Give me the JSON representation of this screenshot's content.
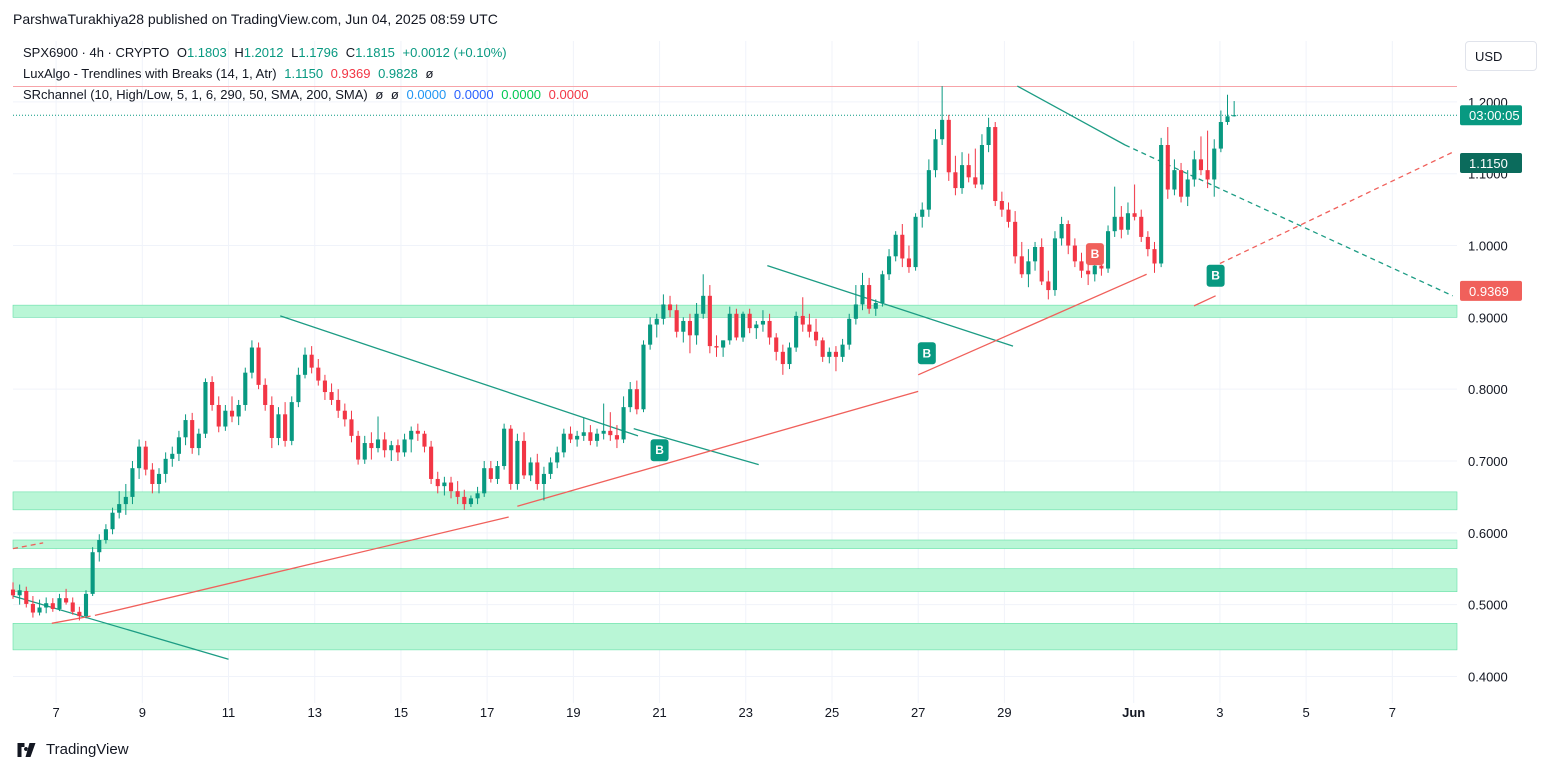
{
  "publisher": "ParshwaTurakhiya28 published on TradingView.com, Jun 04, 2025 08:59 UTC",
  "legend": {
    "symbol": "SPX6900 · 4h · CRYPTO",
    "open_label": "O",
    "open": "1.1803",
    "high_label": "H",
    "high": "1.2012",
    "low_label": "L",
    "low": "1.1796",
    "close_label": "C",
    "close": "1.1815",
    "change": "+0.0012 (+0.10%)",
    "indicator1_name": "LuxAlgo - Trendlines with Breaks (14, 1, Atr)",
    "indicator1_values": [
      "1.1150",
      "0.9369",
      "0.9828",
      "ø"
    ],
    "indicator2_name": "SRchannel (10, High/Low, 5, 1, 6, 290, 50, SMA, 200, SMA)",
    "indicator2_values": [
      "ø",
      "ø",
      "0.0000",
      "0.0000",
      "0.0000",
      "0.0000"
    ]
  },
  "currency": "USD",
  "footer": {
    "brand": "TradingView"
  },
  "colors": {
    "up": "#089981",
    "down": "#f23645",
    "zone_fill": "#b9f6d6",
    "zone_line": "#66e0a8",
    "trend_down": "#1c9c84",
    "trend_up": "#f0605b",
    "grid": "#f0f3fa"
  },
  "chart_data": {
    "type": "candlestick",
    "title": "SPX6900 · 4h · CRYPTO",
    "y_ticks": [
      "0.4000",
      "0.5000",
      "0.6000",
      "0.7000",
      "0.8000",
      "0.9000",
      "1.0000",
      "1.1000",
      "1.2000"
    ],
    "ylim": [
      0.37,
      1.25
    ],
    "x_ticks": [
      "7",
      "9",
      "11",
      "13",
      "15",
      "17",
      "19",
      "21",
      "23",
      "25",
      "27",
      "29",
      "Jun",
      "3",
      "5",
      "7"
    ],
    "x_tick_days": [
      7,
      9,
      11,
      13,
      15,
      17,
      19,
      21,
      23,
      25,
      27,
      29,
      32,
      34,
      36,
      38
    ],
    "x_range_days": [
      6.0,
      39.5
    ],
    "last_price_tag": {
      "price": 1.1815,
      "label": "03:00:05"
    },
    "price_tags": [
      {
        "price": 1.115,
        "label": "1.1150",
        "color": "#0b6b5c"
      },
      {
        "price": 0.9369,
        "label": "0.9369",
        "color": "#f0605b"
      }
    ],
    "resistance_line": 1.2215,
    "sr_zones": [
      [
        0.9,
        0.917
      ],
      [
        0.632,
        0.657
      ],
      [
        0.578,
        0.59
      ],
      [
        0.518,
        0.55
      ],
      [
        0.437,
        0.474
      ]
    ],
    "trendlines_down": [
      {
        "start": [
          6.0,
          0.512
        ],
        "end": [
          11.0,
          0.424
        ]
      },
      {
        "start": [
          12.2,
          0.902
        ],
        "end": [
          20.5,
          0.735
        ]
      },
      {
        "start": [
          20.4,
          0.745
        ],
        "end": [
          23.3,
          0.695
        ]
      },
      {
        "start": [
          23.5,
          0.972
        ],
        "end": [
          29.2,
          0.86
        ]
      },
      {
        "start": [
          29.3,
          1.222
        ],
        "end": [
          31.8,
          1.14
        ]
      }
    ],
    "trendlines_down_extended": [
      {
        "start": [
          31.8,
          1.14
        ],
        "end": [
          39.4,
          0.93
        ]
      }
    ],
    "trendlines_up": [
      {
        "start": [
          6.9,
          0.474
        ],
        "end": [
          7.8,
          0.484
        ]
      },
      {
        "start": [
          7.9,
          0.485
        ],
        "end": [
          17.5,
          0.622
        ]
      },
      {
        "start": [
          17.7,
          0.637
        ],
        "end": [
          27.0,
          0.797
        ]
      },
      {
        "start": [
          27.0,
          0.82
        ],
        "end": [
          32.3,
          0.96
        ]
      },
      {
        "start": [
          33.4,
          0.916
        ],
        "end": [
          33.9,
          0.93
        ]
      }
    ],
    "trendlines_up_extended": [
      {
        "start": [
          34.0,
          0.975
        ],
        "end": [
          39.4,
          1.13
        ]
      },
      {
        "start": [
          6.0,
          0.578
        ],
        "end": [
          6.7,
          0.586
        ]
      }
    ],
    "signals": [
      {
        "label": "B",
        "x": 21.0,
        "price": 0.715,
        "color": "#089981"
      },
      {
        "label": "B",
        "x": 27.2,
        "price": 0.85,
        "color": "#089981"
      },
      {
        "label": "B",
        "x": 31.1,
        "price": 0.988,
        "color": "#f0605b"
      },
      {
        "label": "B",
        "x": 33.9,
        "price": 0.958,
        "color": "#089981"
      }
    ],
    "ohlc": [
      [
        0.521,
        0.531,
        0.508,
        0.513
      ],
      [
        0.513,
        0.528,
        0.5,
        0.52
      ],
      [
        0.519,
        0.525,
        0.496,
        0.501
      ],
      [
        0.501,
        0.512,
        0.482,
        0.489
      ],
      [
        0.489,
        0.507,
        0.485,
        0.496
      ],
      [
        0.496,
        0.51,
        0.488,
        0.502
      ],
      [
        0.502,
        0.509,
        0.49,
        0.494
      ],
      [
        0.494,
        0.515,
        0.491,
        0.509
      ],
      [
        0.509,
        0.522,
        0.5,
        0.503
      ],
      [
        0.503,
        0.51,
        0.486,
        0.49
      ],
      [
        0.49,
        0.497,
        0.478,
        0.484
      ],
      [
        0.484,
        0.52,
        0.481,
        0.515
      ],
      [
        0.515,
        0.58,
        0.512,
        0.573
      ],
      [
        0.573,
        0.598,
        0.56,
        0.59
      ],
      [
        0.59,
        0.612,
        0.585,
        0.605
      ],
      [
        0.605,
        0.635,
        0.598,
        0.628
      ],
      [
        0.628,
        0.658,
        0.62,
        0.64
      ],
      [
        0.64,
        0.668,
        0.625,
        0.65
      ],
      [
        0.65,
        0.7,
        0.64,
        0.69
      ],
      [
        0.69,
        0.73,
        0.675,
        0.72
      ],
      [
        0.72,
        0.728,
        0.68,
        0.688
      ],
      [
        0.688,
        0.697,
        0.655,
        0.668
      ],
      [
        0.668,
        0.69,
        0.655,
        0.682
      ],
      [
        0.682,
        0.712,
        0.67,
        0.703
      ],
      [
        0.703,
        0.72,
        0.692,
        0.71
      ],
      [
        0.71,
        0.742,
        0.7,
        0.733
      ],
      [
        0.733,
        0.765,
        0.722,
        0.757
      ],
      [
        0.757,
        0.767,
        0.71,
        0.718
      ],
      [
        0.718,
        0.745,
        0.708,
        0.738
      ],
      [
        0.738,
        0.815,
        0.732,
        0.81
      ],
      [
        0.81,
        0.818,
        0.77,
        0.778
      ],
      [
        0.778,
        0.79,
        0.74,
        0.748
      ],
      [
        0.748,
        0.778,
        0.742,
        0.77
      ],
      [
        0.77,
        0.79,
        0.754,
        0.762
      ],
      [
        0.762,
        0.785,
        0.75,
        0.778
      ],
      [
        0.778,
        0.83,
        0.77,
        0.823
      ],
      [
        0.823,
        0.868,
        0.815,
        0.858
      ],
      [
        0.858,
        0.865,
        0.8,
        0.806
      ],
      [
        0.806,
        0.815,
        0.77,
        0.778
      ],
      [
        0.778,
        0.79,
        0.718,
        0.732
      ],
      [
        0.732,
        0.775,
        0.722,
        0.765
      ],
      [
        0.765,
        0.782,
        0.72,
        0.728
      ],
      [
        0.728,
        0.79,
        0.722,
        0.782
      ],
      [
        0.782,
        0.83,
        0.775,
        0.82
      ],
      [
        0.82,
        0.858,
        0.815,
        0.848
      ],
      [
        0.848,
        0.86,
        0.822,
        0.83
      ],
      [
        0.83,
        0.842,
        0.805,
        0.812
      ],
      [
        0.812,
        0.82,
        0.785,
        0.796
      ],
      [
        0.796,
        0.808,
        0.778,
        0.785
      ],
      [
        0.785,
        0.8,
        0.76,
        0.77
      ],
      [
        0.77,
        0.78,
        0.748,
        0.758
      ],
      [
        0.758,
        0.77,
        0.726,
        0.735
      ],
      [
        0.735,
        0.742,
        0.695,
        0.702
      ],
      [
        0.702,
        0.735,
        0.696,
        0.725
      ],
      [
        0.725,
        0.74,
        0.702,
        0.718
      ],
      [
        0.718,
        0.762,
        0.712,
        0.73
      ],
      [
        0.73,
        0.74,
        0.705,
        0.715
      ],
      [
        0.715,
        0.728,
        0.7,
        0.722
      ],
      [
        0.722,
        0.73,
        0.7,
        0.712
      ],
      [
        0.712,
        0.738,
        0.706,
        0.73
      ],
      [
        0.73,
        0.748,
        0.712,
        0.742
      ],
      [
        0.742,
        0.752,
        0.728,
        0.738
      ],
      [
        0.738,
        0.742,
        0.712,
        0.72
      ],
      [
        0.72,
        0.728,
        0.668,
        0.675
      ],
      [
        0.675,
        0.685,
        0.655,
        0.665
      ],
      [
        0.665,
        0.678,
        0.652,
        0.67
      ],
      [
        0.67,
        0.678,
        0.648,
        0.658
      ],
      [
        0.658,
        0.672,
        0.64,
        0.65
      ],
      [
        0.65,
        0.66,
        0.632,
        0.64
      ],
      [
        0.64,
        0.652,
        0.636,
        0.648
      ],
      [
        0.648,
        0.664,
        0.64,
        0.655
      ],
      [
        0.655,
        0.7,
        0.65,
        0.69
      ],
      [
        0.69,
        0.7,
        0.67,
        0.675
      ],
      [
        0.675,
        0.7,
        0.668,
        0.693
      ],
      [
        0.693,
        0.752,
        0.688,
        0.745
      ],
      [
        0.745,
        0.75,
        0.66,
        0.668
      ],
      [
        0.668,
        0.738,
        0.66,
        0.728
      ],
      [
        0.728,
        0.74,
        0.675,
        0.68
      ],
      [
        0.68,
        0.705,
        0.672,
        0.698
      ],
      [
        0.698,
        0.71,
        0.66,
        0.668
      ],
      [
        0.668,
        0.692,
        0.645,
        0.682
      ],
      [
        0.682,
        0.705,
        0.675,
        0.698
      ],
      [
        0.698,
        0.72,
        0.69,
        0.712
      ],
      [
        0.712,
        0.745,
        0.705,
        0.738
      ],
      [
        0.738,
        0.748,
        0.725,
        0.73
      ],
      [
        0.73,
        0.742,
        0.72,
        0.735
      ],
      [
        0.735,
        0.76,
        0.728,
        0.74
      ],
      [
        0.74,
        0.75,
        0.722,
        0.728
      ],
      [
        0.728,
        0.745,
        0.72,
        0.738
      ],
      [
        0.738,
        0.78,
        0.73,
        0.742
      ],
      [
        0.742,
        0.768,
        0.728,
        0.736
      ],
      [
        0.736,
        0.75,
        0.718,
        0.73
      ],
      [
        0.73,
        0.79,
        0.725,
        0.775
      ],
      [
        0.775,
        0.81,
        0.768,
        0.8
      ],
      [
        0.8,
        0.812,
        0.765,
        0.772
      ],
      [
        0.772,
        0.868,
        0.768,
        0.862
      ],
      [
        0.862,
        0.9,
        0.855,
        0.89
      ],
      [
        0.89,
        0.905,
        0.872,
        0.898
      ],
      [
        0.898,
        0.932,
        0.89,
        0.918
      ],
      [
        0.918,
        0.93,
        0.9,
        0.91
      ],
      [
        0.91,
        0.918,
        0.872,
        0.88
      ],
      [
        0.88,
        0.9,
        0.865,
        0.895
      ],
      [
        0.895,
        0.905,
        0.85,
        0.875
      ],
      [
        0.875,
        0.92,
        0.862,
        0.905
      ],
      [
        0.905,
        0.96,
        0.898,
        0.93
      ],
      [
        0.93,
        0.945,
        0.85,
        0.86
      ],
      [
        0.86,
        0.875,
        0.845,
        0.858
      ],
      [
        0.858,
        0.868,
        0.845,
        0.868
      ],
      [
        0.868,
        0.915,
        0.862,
        0.905
      ],
      [
        0.905,
        0.912,
        0.868,
        0.872
      ],
      [
        0.872,
        0.908,
        0.866,
        0.905
      ],
      [
        0.905,
        0.912,
        0.878,
        0.885
      ],
      [
        0.885,
        0.895,
        0.87,
        0.89
      ],
      [
        0.89,
        0.91,
        0.88,
        0.895
      ],
      [
        0.895,
        0.905,
        0.862,
        0.872
      ],
      [
        0.872,
        0.878,
        0.84,
        0.852
      ],
      [
        0.852,
        0.862,
        0.82,
        0.835
      ],
      [
        0.835,
        0.865,
        0.828,
        0.858
      ],
      [
        0.858,
        0.908,
        0.852,
        0.902
      ],
      [
        0.902,
        0.928,
        0.88,
        0.89
      ],
      [
        0.89,
        0.905,
        0.872,
        0.88
      ],
      [
        0.88,
        0.898,
        0.86,
        0.868
      ],
      [
        0.868,
        0.872,
        0.838,
        0.845
      ],
      [
        0.845,
        0.858,
        0.836,
        0.852
      ],
      [
        0.852,
        0.86,
        0.825,
        0.845
      ],
      [
        0.845,
        0.87,
        0.838,
        0.862
      ],
      [
        0.862,
        0.905,
        0.855,
        0.898
      ],
      [
        0.898,
        0.945,
        0.89,
        0.918
      ],
      [
        0.918,
        0.962,
        0.91,
        0.945
      ],
      [
        0.945,
        0.955,
        0.905,
        0.912
      ],
      [
        0.912,
        0.925,
        0.902,
        0.92
      ],
      [
        0.92,
        0.965,
        0.915,
        0.96
      ],
      [
        0.96,
        0.995,
        0.952,
        0.985
      ],
      [
        0.985,
        1.02,
        0.978,
        1.015
      ],
      [
        1.015,
        1.03,
        0.97,
        0.982
      ],
      [
        0.982,
        1.0,
        0.962,
        0.97
      ],
      [
        0.97,
        1.045,
        0.965,
        1.04
      ],
      [
        1.04,
        1.06,
        1.025,
        1.05
      ],
      [
        1.05,
        1.12,
        1.04,
        1.105
      ],
      [
        1.105,
        1.162,
        1.095,
        1.148
      ],
      [
        1.148,
        1.222,
        1.14,
        1.175
      ],
      [
        1.175,
        1.182,
        1.09,
        1.102
      ],
      [
        1.102,
        1.125,
        1.07,
        1.08
      ],
      [
        1.08,
        1.13,
        1.072,
        1.112
      ],
      [
        1.112,
        1.128,
        1.088,
        1.095
      ],
      [
        1.095,
        1.135,
        1.08,
        1.085
      ],
      [
        1.085,
        1.155,
        1.078,
        1.14
      ],
      [
        1.14,
        1.178,
        1.13,
        1.165
      ],
      [
        1.165,
        1.172,
        1.055,
        1.062
      ],
      [
        1.062,
        1.075,
        1.04,
        1.05
      ],
      [
        1.05,
        1.06,
        1.025,
        1.033
      ],
      [
        1.033,
        1.048,
        0.975,
        0.985
      ],
      [
        0.985,
        1.005,
        0.955,
        0.96
      ],
      [
        0.96,
        0.995,
        0.942,
        0.978
      ],
      [
        0.978,
        1.005,
        0.965,
        0.998
      ],
      [
        0.998,
        1.01,
        0.945,
        0.95
      ],
      [
        0.95,
        0.965,
        0.925,
        0.938
      ],
      [
        0.938,
        1.02,
        0.93,
        1.01
      ],
      [
        1.01,
        1.04,
        1.0,
        1.03
      ],
      [
        1.03,
        1.035,
        0.988,
        1.0
      ],
      [
        1.0,
        1.01,
        0.97,
        0.978
      ],
      [
        0.978,
        0.99,
        0.955,
        0.965
      ],
      [
        0.965,
        0.978,
        0.945,
        0.96
      ],
      [
        0.96,
        0.98,
        0.95,
        0.972
      ],
      [
        0.972,
        0.985,
        0.958,
        0.968
      ],
      [
        0.968,
        1.028,
        0.962,
        1.02
      ],
      [
        1.02,
        1.082,
        1.012,
        1.04
      ],
      [
        1.04,
        1.055,
        1.01,
        1.022
      ],
      [
        1.022,
        1.06,
        1.015,
        1.045
      ],
      [
        1.045,
        1.085,
        1.035,
        1.04
      ],
      [
        1.04,
        1.05,
        1.005,
        1.012
      ],
      [
        1.012,
        1.02,
        0.985,
        0.995
      ],
      [
        0.995,
        1.005,
        0.962,
        0.975
      ],
      [
        0.975,
        1.15,
        0.97,
        1.14
      ],
      [
        1.14,
        1.165,
        1.065,
        1.078
      ],
      [
        1.078,
        1.12,
        1.07,
        1.105
      ],
      [
        1.105,
        1.115,
        1.06,
        1.068
      ],
      [
        1.068,
        1.105,
        1.055,
        1.092
      ],
      [
        1.092,
        1.132,
        1.082,
        1.12
      ],
      [
        1.12,
        1.152,
        1.098,
        1.105
      ],
      [
        1.105,
        1.16,
        1.08,
        1.092
      ],
      [
        1.092,
        1.148,
        1.068,
        1.135
      ],
      [
        1.135,
        1.188,
        1.13,
        1.172
      ],
      [
        1.172,
        1.21,
        1.168,
        1.18
      ],
      [
        1.18,
        1.2012,
        1.1796,
        1.1815
      ]
    ]
  }
}
